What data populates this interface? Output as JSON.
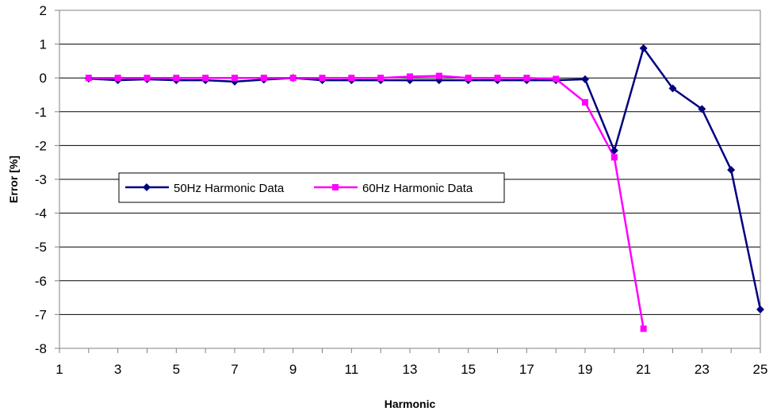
{
  "chart_data": {
    "type": "line",
    "title": "",
    "xlabel": "Harmonic",
    "ylabel": "Error [%]",
    "xlim": [
      1,
      25
    ],
    "ylim": [
      -8,
      2
    ],
    "x_ticks": [
      "1",
      "3",
      "5",
      "7",
      "9",
      "11",
      "13",
      "15",
      "17",
      "19",
      "21",
      "23",
      "25"
    ],
    "y_ticks": [
      "2",
      "1",
      "0",
      "-1",
      "-2",
      "-3",
      "-4",
      "-5",
      "-6",
      "-7",
      "-8"
    ],
    "grid": "horizontal",
    "legend": "left-middle, inside plot",
    "series": [
      {
        "name": "50Hz Harmonic Data",
        "color": "#000080",
        "marker": "diamond",
        "x": [
          2,
          3,
          4,
          5,
          6,
          7,
          8,
          9,
          10,
          11,
          12,
          13,
          14,
          15,
          16,
          17,
          18,
          19,
          20,
          21,
          22,
          23,
          24,
          25
        ],
        "values": [
          -0.02,
          -0.07,
          -0.04,
          -0.07,
          -0.07,
          -0.11,
          -0.05,
          0.0,
          -0.07,
          -0.07,
          -0.07,
          -0.07,
          -0.07,
          -0.07,
          -0.07,
          -0.07,
          -0.07,
          -0.04,
          -2.15,
          0.88,
          -0.31,
          -0.92,
          -2.72,
          -6.85
        ]
      },
      {
        "name": "60Hz Harmonic Data",
        "color": "#FF00FF",
        "marker": "square",
        "x": [
          2,
          3,
          4,
          5,
          6,
          7,
          8,
          9,
          10,
          11,
          12,
          13,
          14,
          15,
          16,
          17,
          18,
          19,
          20,
          21
        ],
        "values": [
          0.0,
          0.0,
          0.0,
          0.0,
          0.0,
          0.0,
          0.0,
          0.0,
          0.0,
          0.0,
          0.0,
          0.04,
          0.06,
          0.0,
          0.0,
          0.0,
          -0.03,
          -0.72,
          -2.35,
          -7.42
        ]
      }
    ]
  }
}
